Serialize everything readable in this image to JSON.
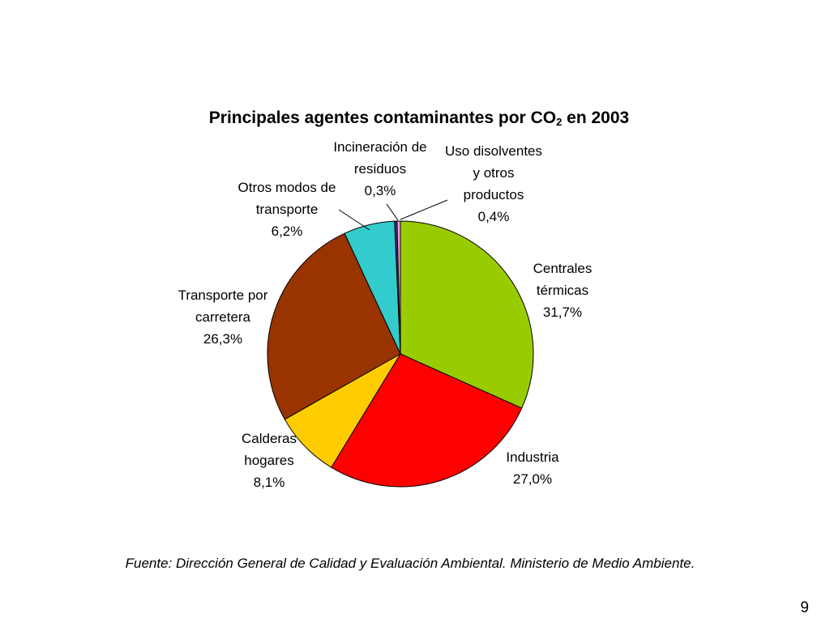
{
  "chart_data": {
    "type": "pie",
    "title_prefix": "Principales agentes contaminantes por CO",
    "title_sub": "2",
    "title_suffix": " en 2003",
    "start": "12 o'clock",
    "direction": "clockwise",
    "slices": [
      {
        "label_lines": [
          "Centrales",
          "térmicas"
        ],
        "value": 31.7,
        "value_text": "31,7%",
        "color": "#99CC00"
      },
      {
        "label_lines": [
          "Industria"
        ],
        "value": 27.0,
        "value_text": "27,0%",
        "color": "#FF0000"
      },
      {
        "label_lines": [
          "Calderas",
          "hogares"
        ],
        "value": 8.1,
        "value_text": "8,1%",
        "color": "#FFCC00"
      },
      {
        "label_lines": [
          "Transporte por",
          "carretera"
        ],
        "value": 26.3,
        "value_text": "26,3%",
        "color": "#993300"
      },
      {
        "label_lines": [
          "Otros modos de",
          "transporte"
        ],
        "value": 6.2,
        "value_text": "6,2%",
        "color": "#33CCCC"
      },
      {
        "label_lines": [
          "Incineración de",
          "residuos"
        ],
        "value": 0.3,
        "value_text": "0,3%",
        "color": "#333399"
      },
      {
        "label_lines": [
          "Uso disolventes",
          "y otros",
          "productos"
        ],
        "value": 0.4,
        "value_text": "0,4%",
        "color": "#FF99CC"
      }
    ]
  },
  "footer": {
    "source": "Fuente: Dirección General de Calidad y Evaluación Ambiental. Ministerio de Medio Ambiente.",
    "page_number": "9"
  }
}
